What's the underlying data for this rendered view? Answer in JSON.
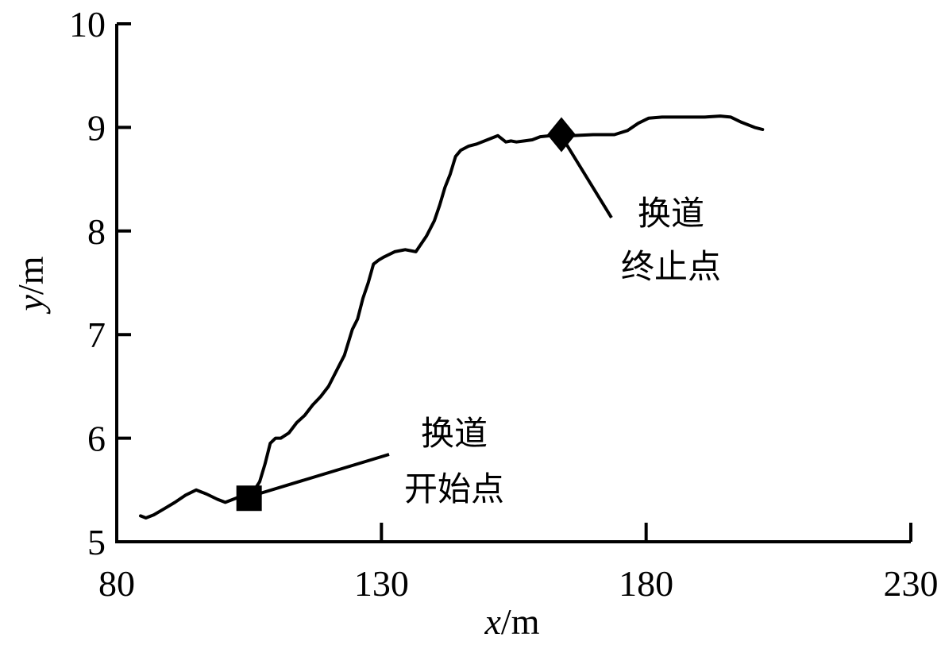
{
  "chart_data": {
    "type": "line",
    "xlabel": {
      "var": "x",
      "unit": "/m"
    },
    "ylabel": {
      "var": "y",
      "unit": "/m"
    },
    "xlim": [
      80,
      230
    ],
    "ylim": [
      5,
      10
    ],
    "xticks": [
      "80",
      "130",
      "180",
      "230"
    ],
    "yticks": [
      "5",
      "6",
      "7",
      "8",
      "9",
      "10"
    ],
    "grid": false,
    "series": [
      {
        "x": [
          84.5,
          85.5,
          87,
          89,
          91,
          93,
          95,
          97,
          99,
          100.5,
          102.5,
          104.5,
          106,
          107,
          108,
          109,
          110,
          111,
          112.5,
          114,
          115.5,
          117,
          118.5,
          120,
          121.5,
          123,
          124.5,
          125.5,
          126.5,
          127.5,
          128.5,
          129.5,
          130.5,
          132.5,
          134.5,
          136.5,
          138.5,
          140,
          141,
          142,
          143,
          144,
          145,
          146.5,
          148,
          150,
          152,
          153.5,
          154.5,
          155.5,
          157,
          158.5,
          160,
          162,
          163.5,
          166,
          170,
          174,
          176.5,
          178.5,
          180.5,
          183,
          187,
          191,
          194,
          196,
          198,
          200.5,
          202
        ],
        "y": [
          5.25,
          5.23,
          5.26,
          5.32,
          5.38,
          5.45,
          5.5,
          5.46,
          5.41,
          5.38,
          5.42,
          5.46,
          5.5,
          5.58,
          5.75,
          5.95,
          6.0,
          6.0,
          6.05,
          6.15,
          6.22,
          6.32,
          6.4,
          6.5,
          6.65,
          6.8,
          7.05,
          7.15,
          7.35,
          7.5,
          7.68,
          7.72,
          7.75,
          7.8,
          7.82,
          7.8,
          7.95,
          8.1,
          8.25,
          8.42,
          8.55,
          8.72,
          8.78,
          8.82,
          8.84,
          8.88,
          8.92,
          8.86,
          8.87,
          8.86,
          8.87,
          8.88,
          8.91,
          8.92,
          8.93,
          8.92,
          8.93,
          8.93,
          8.97,
          9.04,
          9.09,
          9.1,
          9.1,
          9.1,
          9.11,
          9.1,
          9.05,
          9.0,
          8.98
        ]
      }
    ],
    "markers": [
      {
        "shape": "square",
        "x": 105,
        "y": 5.42
      },
      {
        "shape": "diamond",
        "x": 164,
        "y": 8.93
      }
    ],
    "annotations": [
      {
        "lines": [
          "换道",
          "开始点"
        ],
        "target": "square"
      },
      {
        "lines": [
          "换道",
          "终止点"
        ],
        "target": "diamond"
      }
    ]
  }
}
